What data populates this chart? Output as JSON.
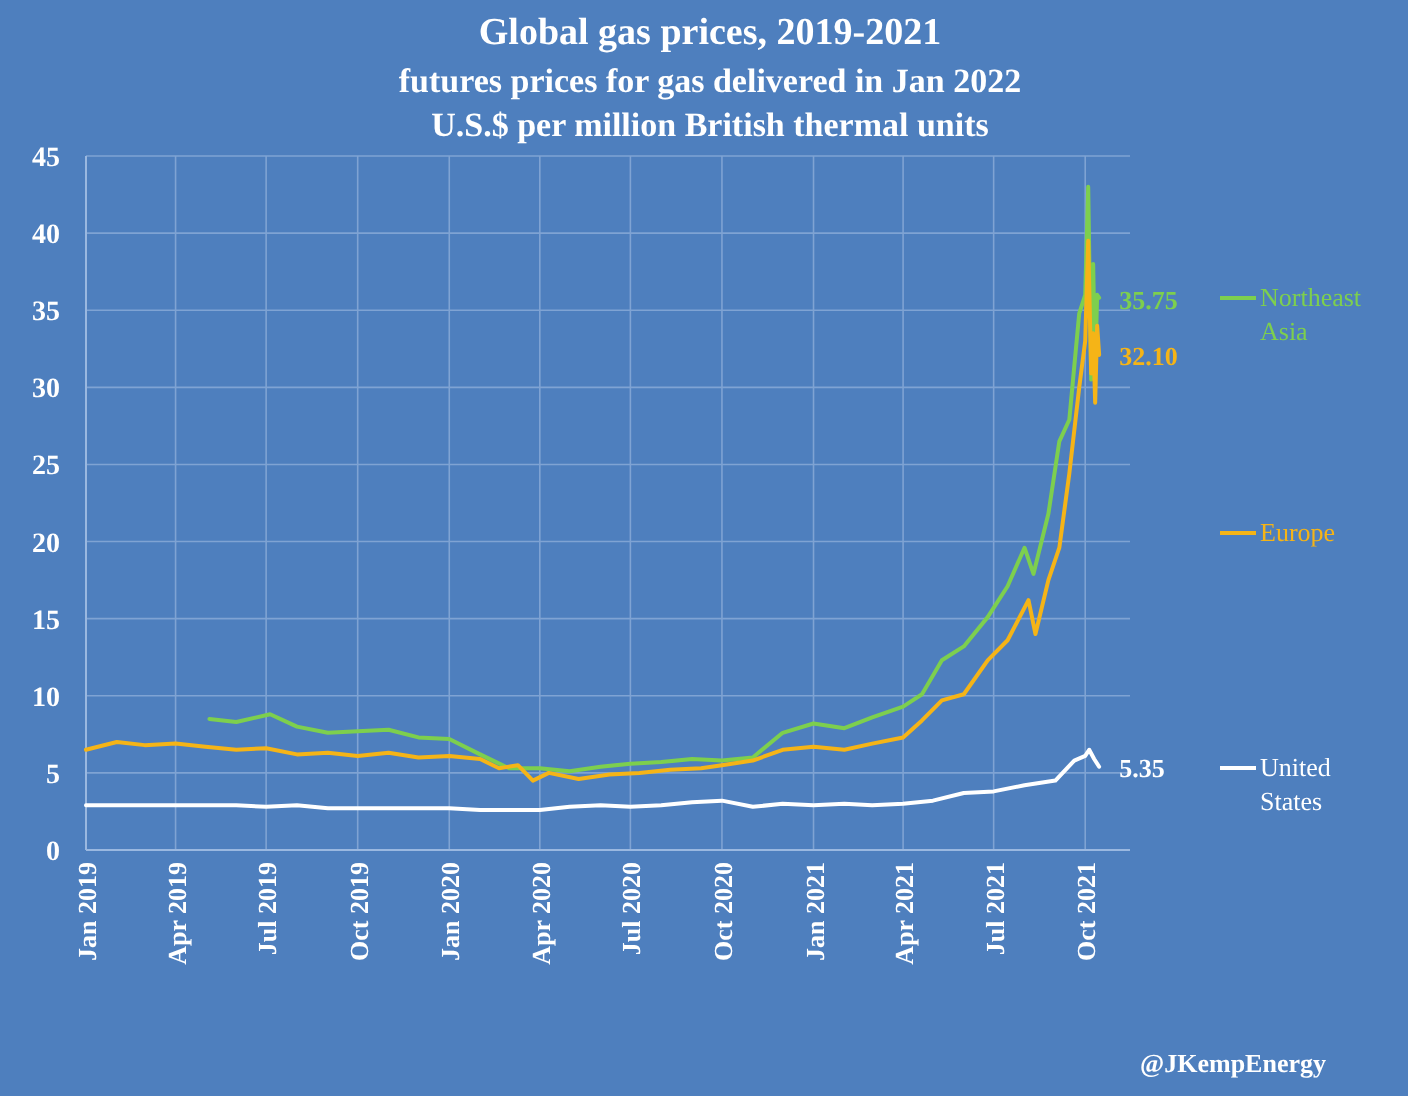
{
  "chart_data": {
    "type": "line",
    "title": "Global gas prices, 2019-2021",
    "subtitle": "futures prices for gas delivered in Jan 2022\nU.S.$ per million British thermal units",
    "xlim": [
      "2019-01-01",
      "2021-11-15"
    ],
    "xticks": [
      {
        "value": "2019-01-01",
        "label": "Jan 2019"
      },
      {
        "value": "2019-04-01",
        "label": "Apr 2019"
      },
      {
        "value": "2019-07-01",
        "label": "Jul 2019"
      },
      {
        "value": "2019-10-01",
        "label": "Oct 2019"
      },
      {
        "value": "2020-01-01",
        "label": "Jan 2020"
      },
      {
        "value": "2020-04-01",
        "label": "Apr 2020"
      },
      {
        "value": "2020-07-01",
        "label": "Jul 2020"
      },
      {
        "value": "2020-10-01",
        "label": "Oct 2020"
      },
      {
        "value": "2021-01-01",
        "label": "Jan 2021"
      },
      {
        "value": "2021-04-01",
        "label": "Apr 2021"
      },
      {
        "value": "2021-07-01",
        "label": "Jul 2021"
      },
      {
        "value": "2021-10-01",
        "label": "Oct 2021"
      }
    ],
    "ylim": [
      0,
      45
    ],
    "yticks": [
      0,
      5,
      10,
      15,
      20,
      25,
      30,
      35,
      40,
      45
    ],
    "grid": true,
    "legend": "right",
    "series": [
      {
        "name": "Northeast Asia",
        "color": "#7dcf4e",
        "x": [
          "2019-05-05",
          "2019-06-01",
          "2019-07-05",
          "2019-08-01",
          "2019-09-01",
          "2019-10-01",
          "2019-11-01",
          "2019-12-01",
          "2020-01-01",
          "2020-02-01",
          "2020-03-01",
          "2020-04-01",
          "2020-05-01",
          "2020-06-01",
          "2020-07-01",
          "2020-08-01",
          "2020-09-01",
          "2020-10-01",
          "2020-11-01",
          "2020-12-01",
          "2021-01-01",
          "2021-02-01",
          "2021-03-01",
          "2021-04-01",
          "2021-04-20",
          "2021-05-10",
          "2021-06-01",
          "2021-06-25",
          "2021-07-15",
          "2021-08-01",
          "2021-08-10",
          "2021-08-25",
          "2021-09-05",
          "2021-09-15",
          "2021-09-25",
          "2021-10-01",
          "2021-10-04",
          "2021-10-07",
          "2021-10-09",
          "2021-10-11",
          "2021-10-13",
          "2021-10-15"
        ],
        "values": [
          8.5,
          8.3,
          8.8,
          8.0,
          7.6,
          7.7,
          7.8,
          7.3,
          7.2,
          6.2,
          5.3,
          5.3,
          5.1,
          5.4,
          5.6,
          5.7,
          5.9,
          5.8,
          6.0,
          7.6,
          8.2,
          7.9,
          8.6,
          9.3,
          10.1,
          12.3,
          13.2,
          15.1,
          17.1,
          19.6,
          17.9,
          21.8,
          26.5,
          27.9,
          34.8,
          36,
          43,
          30.5,
          38,
          31,
          36,
          35.8
        ]
      },
      {
        "name": "Europe",
        "color": "#f5b417",
        "x": [
          "2019-01-01",
          "2019-02-01",
          "2019-03-01",
          "2019-04-01",
          "2019-05-01",
          "2019-06-01",
          "2019-07-01",
          "2019-08-01",
          "2019-09-01",
          "2019-10-01",
          "2019-11-01",
          "2019-12-01",
          "2020-01-01",
          "2020-02-01",
          "2020-02-20",
          "2020-03-10",
          "2020-03-25",
          "2020-04-10",
          "2020-05-10",
          "2020-06-10",
          "2020-07-10",
          "2020-08-10",
          "2020-09-10",
          "2020-10-01",
          "2020-11-01",
          "2020-12-01",
          "2021-01-01",
          "2021-02-01",
          "2021-03-01",
          "2021-04-01",
          "2021-04-20",
          "2021-05-10",
          "2021-06-01",
          "2021-06-25",
          "2021-07-15",
          "2021-08-05",
          "2021-08-12",
          "2021-08-25",
          "2021-09-05",
          "2021-09-15",
          "2021-09-25",
          "2021-10-01",
          "2021-10-04",
          "2021-10-07",
          "2021-10-09",
          "2021-10-11",
          "2021-10-13",
          "2021-10-15"
        ],
        "values": [
          6.5,
          7.0,
          6.8,
          6.9,
          6.7,
          6.5,
          6.6,
          6.2,
          6.3,
          6.1,
          6.3,
          6.0,
          6.1,
          5.9,
          5.3,
          5.5,
          4.5,
          5.0,
          4.6,
          4.9,
          5.0,
          5.2,
          5.3,
          5.5,
          5.8,
          6.5,
          6.7,
          6.5,
          6.9,
          7.3,
          8.4,
          9.7,
          10.1,
          12.3,
          13.6,
          16.2,
          14.0,
          17.5,
          19.6,
          24.4,
          30.0,
          33,
          39.5,
          30.9,
          33.5,
          29.0,
          34,
          32.1
        ]
      },
      {
        "name": "United States",
        "color": "#ffffff",
        "x": [
          "2019-01-01",
          "2019-04-01",
          "2019-06-01",
          "2019-07-01",
          "2019-08-01",
          "2019-09-01",
          "2019-10-01",
          "2019-11-01",
          "2019-12-01",
          "2020-01-01",
          "2020-02-01",
          "2020-03-01",
          "2020-04-01",
          "2020-05-01",
          "2020-06-01",
          "2020-07-01",
          "2020-08-01",
          "2020-09-01",
          "2020-10-01",
          "2020-11-01",
          "2020-12-01",
          "2021-01-01",
          "2021-02-01",
          "2021-03-01",
          "2021-04-01",
          "2021-05-01",
          "2021-06-01",
          "2021-07-01",
          "2021-08-01",
          "2021-09-01",
          "2021-09-20",
          "2021-10-01",
          "2021-10-05",
          "2021-10-10",
          "2021-10-15"
        ],
        "values": [
          2.9,
          2.9,
          2.9,
          2.8,
          2.9,
          2.7,
          2.7,
          2.7,
          2.7,
          2.7,
          2.6,
          2.6,
          2.6,
          2.8,
          2.9,
          2.8,
          2.9,
          3.1,
          3.2,
          2.8,
          3.0,
          2.9,
          3.0,
          2.9,
          3.0,
          3.2,
          3.7,
          3.8,
          4.2,
          4.5,
          5.8,
          6.1,
          6.5,
          5.9,
          5.4
        ]
      }
    ],
    "annotations": [
      {
        "text": "35.75",
        "x": "2021-10-15",
        "y": 35.75
      },
      {
        "text": "32.10",
        "x": "2021-10-15",
        "y": 32.1
      },
      {
        "text": "5.35",
        "x": "2021-10-15",
        "y": 5.35
      },
      "@JKempEnergy"
    ]
  }
}
